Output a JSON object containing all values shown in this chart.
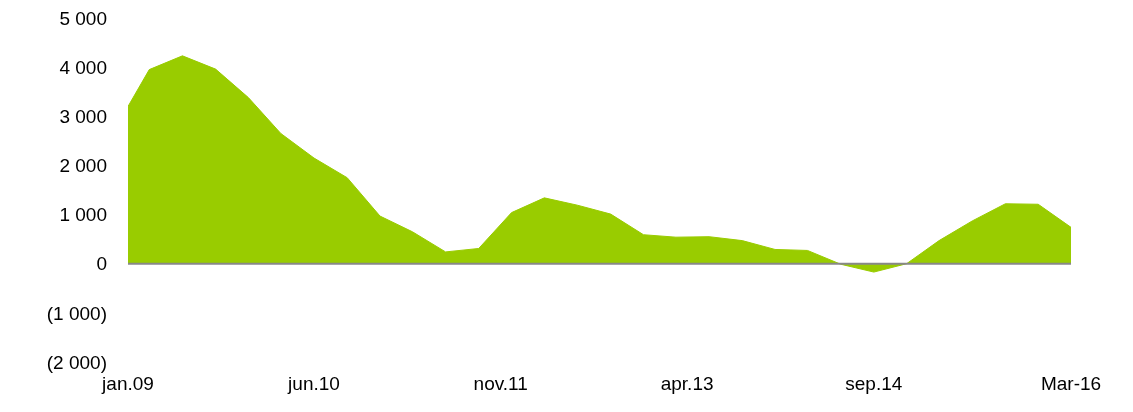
{
  "chart_data": {
    "type": "area",
    "x": [
      "2009-01",
      "2009-03",
      "2009-06",
      "2009-09",
      "2009-12",
      "2010-03",
      "2010-06",
      "2010-09",
      "2010-12",
      "2011-03",
      "2011-06",
      "2011-09",
      "2011-12",
      "2012-03",
      "2012-06",
      "2012-09",
      "2012-12",
      "2013-03",
      "2013-06",
      "2013-09",
      "2013-12",
      "2014-03",
      "2014-06",
      "2014-09",
      "2014-12",
      "2015-03",
      "2015-06",
      "2015-09",
      "2015-12",
      "2016-03"
    ],
    "values": [
      3200,
      3950,
      4230,
      3960,
      3380,
      2650,
      2150,
      1750,
      970,
      650,
      240,
      310,
      1040,
      1340,
      1190,
      1010,
      590,
      540,
      550,
      470,
      290,
      270,
      -10,
      -170,
      0,
      470,
      870,
      1220,
      1210,
      740
    ],
    "color": "#99cc00",
    "xlim": [
      "2009-01",
      "2016-03"
    ],
    "xticks": [
      {
        "value": "2009-01",
        "label": "jan.09"
      },
      {
        "value": "2010-06",
        "label": "jun.10"
      },
      {
        "value": "2011-11",
        "label": "nov.11"
      },
      {
        "value": "2013-04",
        "label": "apr.13"
      },
      {
        "value": "2014-09",
        "label": "sep.14"
      },
      {
        "value": "2016-03",
        "label": "Mar-16"
      }
    ],
    "ylim": [
      -2000,
      5000
    ],
    "yticks": [
      {
        "value": 5000,
        "label": "5 000"
      },
      {
        "value": 4000,
        "label": "4 000"
      },
      {
        "value": 3000,
        "label": "3 000"
      },
      {
        "value": 2000,
        "label": "2 000"
      },
      {
        "value": 1000,
        "label": "1 000"
      },
      0,
      {
        "value": -1000,
        "label": "(1 000)"
      },
      {
        "value": -2000,
        "label": "(2 000)"
      }
    ],
    "ref_lines": [
      {
        "axis": "y",
        "value": 0,
        "color": "#888888"
      }
    ]
  }
}
